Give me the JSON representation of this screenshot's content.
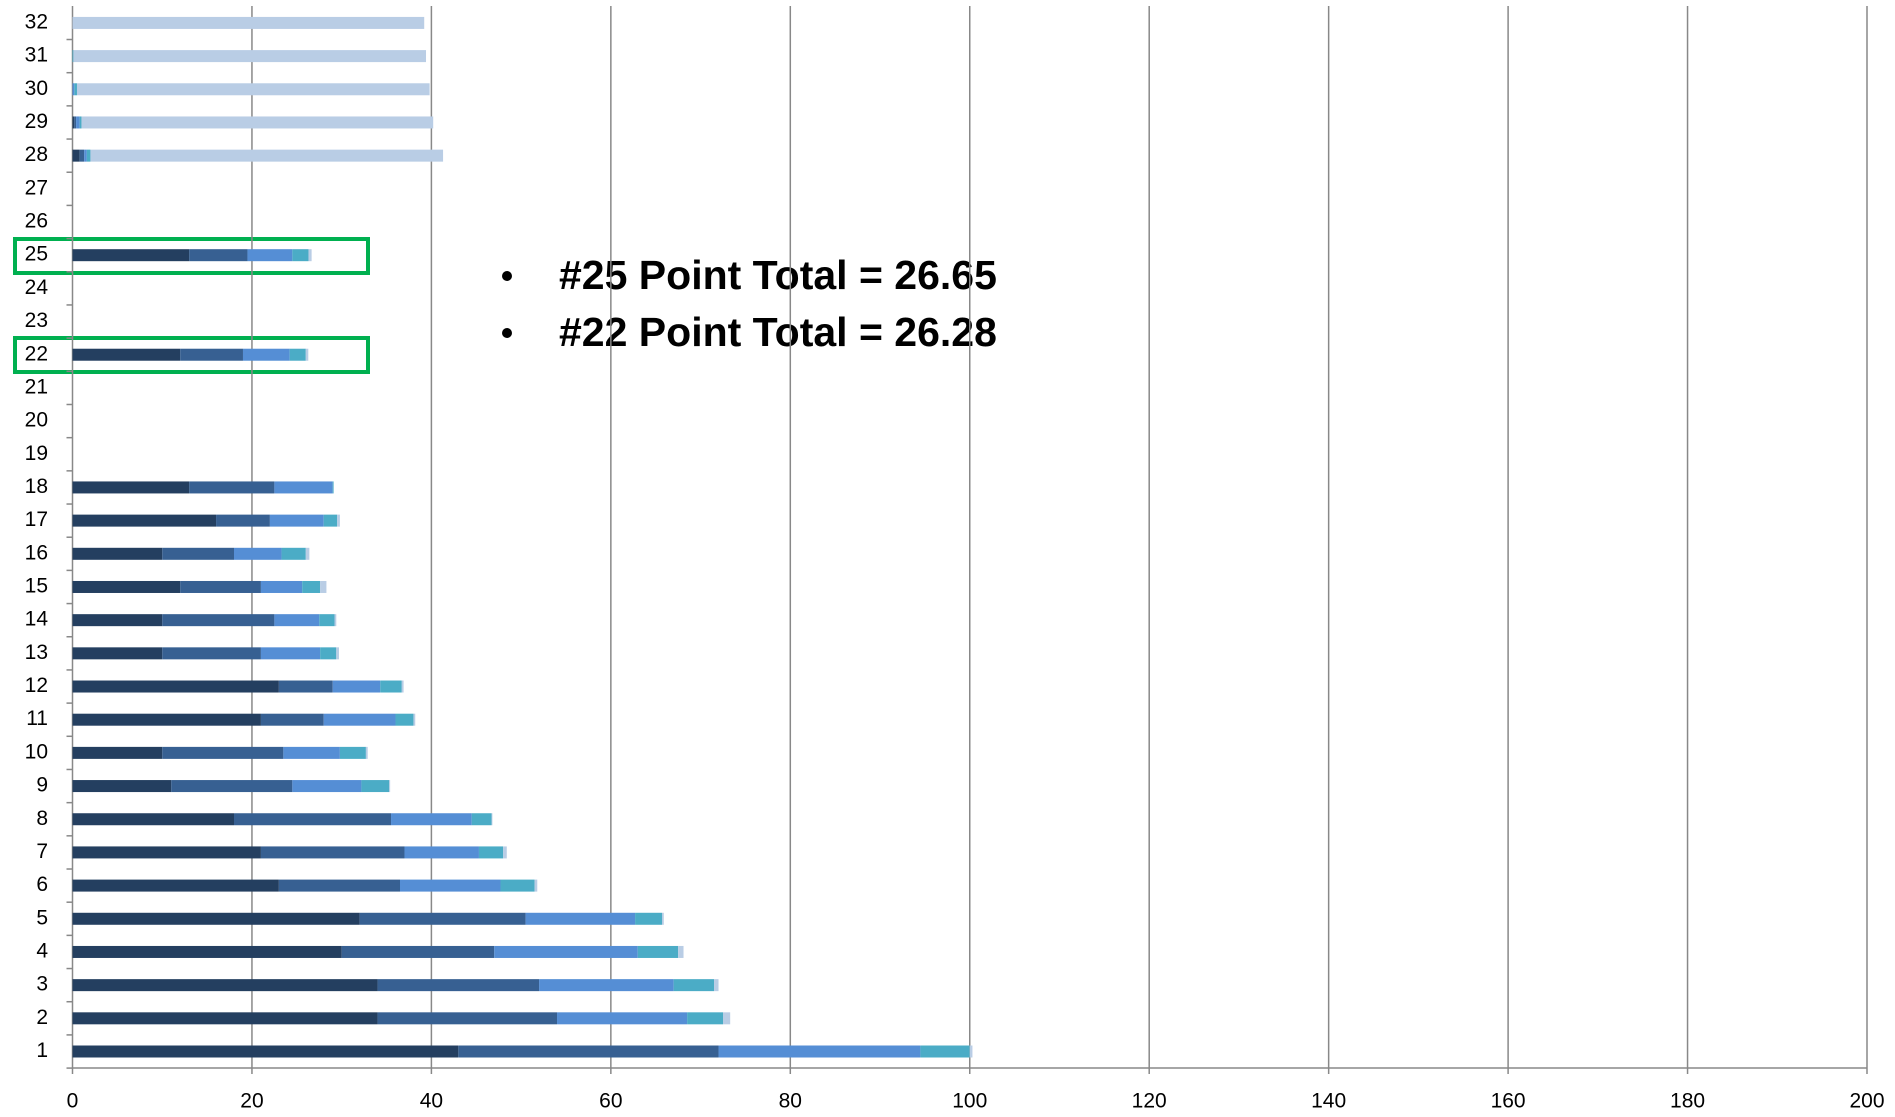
{
  "chart_data": {
    "type": "stacked-barh",
    "categories": [
      "1",
      "2",
      "3",
      "4",
      "5",
      "6",
      "7",
      "8",
      "9",
      "10",
      "11",
      "12",
      "13",
      "14",
      "15",
      "16",
      "17",
      "18",
      "19",
      "20",
      "21",
      "22",
      "23",
      "24",
      "25",
      "26",
      "27",
      "28",
      "29",
      "30",
      "31",
      "32"
    ],
    "series": [
      {
        "color": "#243f60",
        "values": [
          43,
          34,
          34,
          30,
          32,
          23,
          21,
          18,
          11,
          10,
          21,
          23,
          10,
          10,
          12,
          10,
          16,
          13,
          null,
          null,
          null,
          12,
          null,
          null,
          13,
          null,
          null,
          0.8,
          0.2,
          0,
          0,
          0
        ]
      },
      {
        "color": "#376092",
        "values": [
          29,
          20,
          18,
          17,
          18.5,
          13.5,
          16,
          17.5,
          13.5,
          13.5,
          7,
          6,
          11,
          12.5,
          9,
          8,
          6,
          9.5,
          null,
          null,
          null,
          7,
          null,
          null,
          6.5,
          null,
          null,
          0.5,
          0.2,
          0,
          0,
          0
        ]
      },
      {
        "color": "#558ed5",
        "values": [
          22.5,
          14.5,
          15,
          16,
          12.2,
          11.2,
          8.3,
          9,
          7.7,
          6.3,
          8,
          5.3,
          6.6,
          5,
          4.6,
          5.3,
          6,
          6.5,
          null,
          null,
          null,
          5.2,
          null,
          null,
          5,
          null,
          null,
          0.3,
          0.4,
          0.2,
          0,
          0
        ]
      },
      {
        "color": "#4bacc6",
        "values": [
          5.5,
          4,
          4.5,
          4.5,
          3,
          3.8,
          2.7,
          2.2,
          3.1,
          2.9,
          2,
          2.4,
          1.8,
          1.7,
          2,
          2.7,
          1.5,
          0.1,
          null,
          null,
          null,
          1.8,
          null,
          null,
          1.8,
          null,
          null,
          0.4,
          0.2,
          0.3,
          0.1,
          0
        ]
      },
      {
        "color": "#b9cde5",
        "values": [
          0.3,
          0.8,
          0.5,
          0.6,
          0.2,
          0.3,
          0.4,
          0.1,
          0.1,
          0.2,
          0.2,
          0.2,
          0.3,
          0.2,
          0.7,
          0.4,
          0.3,
          0,
          null,
          null,
          null,
          0.28,
          null,
          null,
          0.35,
          null,
          null,
          39.3,
          39.2,
          39.3,
          39.3,
          39.2
        ]
      }
    ],
    "xlim": [
      0,
      200
    ],
    "xticks": [
      0,
      20,
      40,
      60,
      80,
      100,
      120,
      140,
      160,
      180,
      200
    ],
    "grid": true,
    "annotations": [
      "#25 Point Total = 26.65",
      "#22 Point Total = 26.28"
    ]
  }
}
